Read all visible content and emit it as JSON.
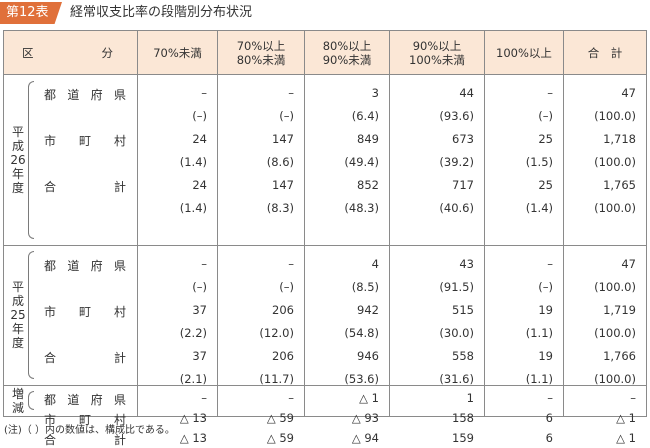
{
  "header": {
    "badge": "第12表",
    "title": "経常収支比率の段階別分布状況"
  },
  "columns": {
    "first_left": "区",
    "first_right": "分",
    "heads": [
      "70%未満",
      "70%以上\n80%未満",
      "80%以上\n90%未満",
      "90%以上\n100%未満",
      "100%以上",
      "合　計"
    ]
  },
  "groups": [
    {
      "label": "平成26年度",
      "rows": [
        {
          "label": "都道府県",
          "values": [
            "–",
            "–",
            "3",
            "44",
            "–",
            "47"
          ]
        },
        {
          "label": "",
          "values": [
            "(–)",
            "(–)",
            "(6.4)",
            "(93.6)",
            "(–)",
            "(100.0)"
          ]
        },
        {
          "label": "市町村",
          "values": [
            "24",
            "147",
            "849",
            "673",
            "25",
            "1,718"
          ]
        },
        {
          "label": "",
          "values": [
            "(1.4)",
            "(8.6)",
            "(49.4)",
            "(39.2)",
            "(1.5)",
            "(100.0)"
          ]
        },
        {
          "label": "合計",
          "values": [
            "24",
            "147",
            "852",
            "717",
            "25",
            "1,765"
          ]
        },
        {
          "label": "",
          "values": [
            "(1.4)",
            "(8.3)",
            "(48.3)",
            "(40.6)",
            "(1.4)",
            "(100.0)"
          ]
        }
      ]
    },
    {
      "label": "平成25年度",
      "rows": [
        {
          "label": "都道府県",
          "values": [
            "–",
            "–",
            "4",
            "43",
            "–",
            "47"
          ]
        },
        {
          "label": "",
          "values": [
            "(–)",
            "(–)",
            "(8.5)",
            "(91.5)",
            "(–)",
            "(100.0)"
          ]
        },
        {
          "label": "市町村",
          "values": [
            "37",
            "206",
            "942",
            "515",
            "19",
            "1,719"
          ]
        },
        {
          "label": "",
          "values": [
            "(2.2)",
            "(12.0)",
            "(54.8)",
            "(30.0)",
            "(1.1)",
            "(100.0)"
          ]
        },
        {
          "label": "合計",
          "values": [
            "37",
            "206",
            "946",
            "558",
            "19",
            "1,766"
          ]
        },
        {
          "label": "",
          "values": [
            "(2.1)",
            "(11.7)",
            "(53.6)",
            "(31.6)",
            "(1.1)",
            "(100.0)"
          ]
        }
      ]
    },
    {
      "label": "増減",
      "rows": [
        {
          "label": "都道府県",
          "values": [
            "–",
            "–",
            "△ 1",
            "1",
            "–",
            "–"
          ]
        },
        {
          "label": "市町村",
          "values": [
            "△ 13",
            "△ 59",
            "△ 93",
            "158",
            "6",
            "△ 1"
          ]
        },
        {
          "label": "合計",
          "values": [
            "△ 13",
            "△ 59",
            "△ 94",
            "159",
            "6",
            "△ 1"
          ]
        }
      ]
    }
  ],
  "note": "(注)（ ）内の数値は、構成比である。"
}
